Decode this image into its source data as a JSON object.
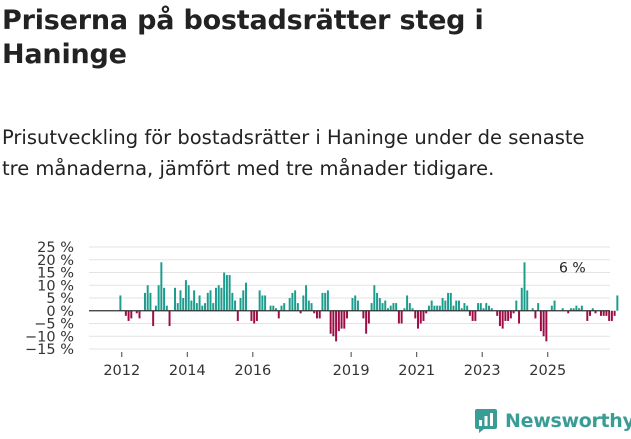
{
  "title": "Priserna på bostadsrätter steg i Haninge",
  "subtitle": "Prisutveckling för bostadsrätter i Haninge under de senaste tre månaderna, jämfört med tre månader tidigare.",
  "brand": {
    "name": "Newsworthy",
    "color": "#3a9d95"
  },
  "colors": {
    "positive": "#1b9c8c",
    "negative": "#9e0c45",
    "grid": "#e3e3e3",
    "zero_line": "#333333"
  },
  "chart_data": {
    "type": "bar",
    "title": "",
    "xlabel": "",
    "ylabel": "",
    "x_start": 2011.958,
    "x_step": 0.08333,
    "ylim": [
      -15,
      25
    ],
    "yticks": [
      -15,
      -10,
      -5,
      0,
      5,
      10,
      15,
      20,
      25
    ],
    "ytick_labels": [
      "−15 %",
      "−10 %",
      "−5 %",
      "0 %",
      "5 %",
      "10 %",
      "15 %",
      "20 %",
      "25 %"
    ],
    "xticks": [
      2012,
      2014,
      2016,
      2019,
      2021,
      2023,
      2025
    ],
    "xtick_labels": [
      "2012",
      "2014",
      "2016",
      "2019",
      "2021",
      "2023",
      "2025"
    ],
    "xlim": [
      2011.0,
      2026.9
    ],
    "annotation": {
      "text": "6 %",
      "x": 2025.75,
      "y": 6
    },
    "values": [
      6,
      0,
      -2,
      -4,
      -3,
      0,
      -1,
      -3,
      0,
      7,
      10,
      7,
      -6,
      2,
      10,
      19,
      9,
      2,
      -6,
      0,
      9,
      3,
      8,
      5,
      12,
      10,
      4,
      8,
      3,
      6,
      2,
      3,
      7,
      8,
      3,
      9,
      10,
      9,
      15,
      14,
      14,
      7,
      4,
      -4,
      5,
      8,
      11,
      0,
      -4,
      -5,
      -4,
      8,
      6,
      6,
      0,
      2,
      2,
      1,
      -3,
      2,
      3,
      0,
      5,
      7,
      8,
      3,
      -1,
      6,
      10,
      4,
      3,
      -1,
      -3,
      -3,
      7,
      7,
      8,
      -9,
      -10,
      -12,
      -8,
      -7,
      -7,
      -3,
      0,
      5,
      6,
      4,
      0,
      -3,
      -9,
      -5,
      3,
      10,
      7,
      5,
      3,
      4,
      1,
      2,
      3,
      3,
      -5,
      -5,
      1,
      6,
      3,
      1,
      -3,
      -7,
      -5,
      -4,
      -1,
      2,
      4,
      2,
      2,
      2,
      5,
      4,
      7,
      7,
      2,
      4,
      4,
      1,
      3,
      2,
      -2,
      -4,
      -4,
      3,
      3,
      1,
      3,
      2,
      1,
      0,
      -2,
      -6,
      -7,
      -4,
      -4,
      -3,
      -1,
      4,
      -5,
      9,
      19,
      8,
      0,
      1,
      -3,
      3,
      -8,
      -10,
      -12,
      0,
      2,
      4,
      0,
      0,
      1,
      0,
      -1,
      1,
      1,
      2,
      1,
      2,
      0,
      -4,
      -2,
      1,
      -1,
      0,
      -2,
      -2,
      -2,
      -4,
      -4,
      -2,
      6
    ]
  }
}
